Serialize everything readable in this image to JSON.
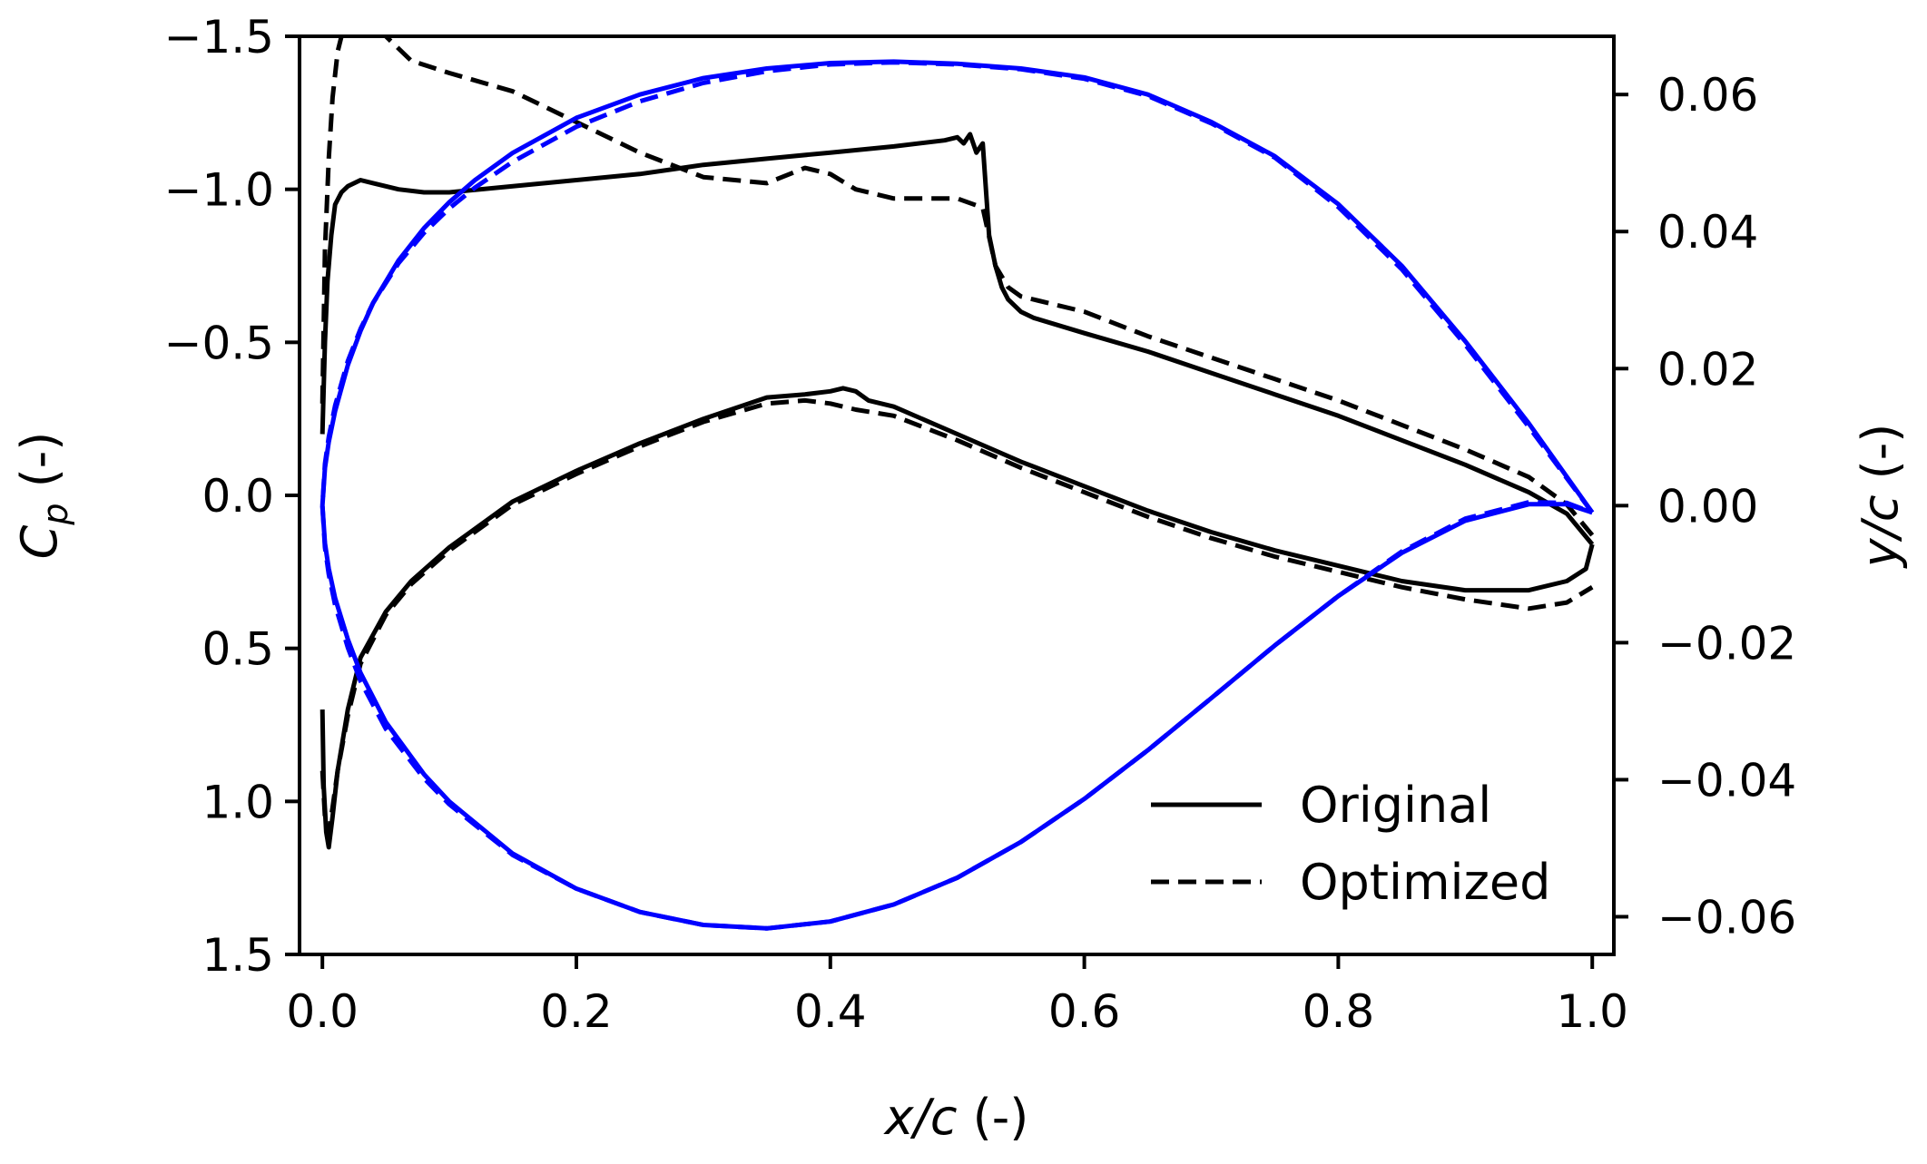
{
  "chart_data": {
    "type": "line",
    "x_axis": {
      "label_var": "x/c",
      "label_unit": " (-)",
      "ticks": [
        "0.0",
        "0.2",
        "0.4",
        "0.6",
        "0.8",
        "1.0"
      ],
      "tick_values": [
        0.0,
        0.2,
        0.4,
        0.6,
        0.8,
        1.0
      ],
      "range": [
        -0.018,
        1.017
      ]
    },
    "y_left": {
      "label_var": "C",
      "label_sub": "p",
      "label_unit": " (-)",
      "ticks": [
        "−1.5",
        "−1.0",
        "−0.5",
        "0.0",
        "0.5",
        "1.0",
        "1.5"
      ],
      "tick_values": [
        -1.5,
        -1.0,
        -0.5,
        0.0,
        0.5,
        1.0,
        1.5
      ],
      "range": [
        -1.5,
        1.5
      ],
      "inverted": true
    },
    "y_right": {
      "label_var": "y/c",
      "label_unit": " (-)",
      "ticks": [
        "0.06",
        "0.04",
        "0.02",
        "0.00",
        "−0.02",
        "−0.04",
        "−0.06"
      ],
      "tick_values": [
        0.06,
        0.04,
        0.02,
        0.0,
        -0.02,
        -0.04,
        -0.06
      ],
      "range": [
        -0.0655,
        0.0685
      ]
    },
    "legend": {
      "placement": "lower-right",
      "entries": [
        {
          "label": "Original",
          "style": "solid"
        },
        {
          "label": "Optimized",
          "style": "dashed"
        }
      ]
    },
    "colors": {
      "pressure": "#000000",
      "geometry": "#0000ff"
    },
    "series": [
      {
        "name": "Original",
        "kind": "cp",
        "style": "solid",
        "color": "#000000",
        "x": [
          0.0,
          0.002,
          0.004,
          0.007,
          0.01,
          0.015,
          0.02,
          0.03,
          0.04,
          0.06,
          0.08,
          0.1,
          0.15,
          0.2,
          0.25,
          0.3,
          0.35,
          0.4,
          0.45,
          0.49,
          0.5,
          0.505,
          0.51,
          0.515,
          0.52,
          0.525,
          0.53,
          0.535,
          0.54,
          0.55,
          0.56,
          0.6,
          0.65,
          0.7,
          0.75,
          0.8,
          0.85,
          0.9,
          0.95,
          0.98,
          1.0
        ],
        "y": [
          -0.2,
          -0.5,
          -0.7,
          -0.85,
          -0.95,
          -0.99,
          -1.01,
          -1.03,
          -1.02,
          -1.0,
          -0.99,
          -0.99,
          -1.01,
          -1.03,
          -1.05,
          -1.08,
          -1.1,
          -1.12,
          -1.14,
          -1.16,
          -1.17,
          -1.15,
          -1.18,
          -1.12,
          -1.15,
          -0.85,
          -0.75,
          -0.68,
          -0.64,
          -0.6,
          -0.58,
          -0.53,
          -0.47,
          -0.4,
          -0.33,
          -0.26,
          -0.18,
          -0.1,
          -0.01,
          0.06,
          0.16
        ]
      },
      {
        "name": "Original",
        "kind": "cp",
        "style": "solid",
        "color": "#000000",
        "x": [
          0.0,
          0.001,
          0.003,
          0.005,
          0.008,
          0.012,
          0.02,
          0.03,
          0.05,
          0.07,
          0.1,
          0.15,
          0.2,
          0.25,
          0.3,
          0.35,
          0.38,
          0.4,
          0.41,
          0.42,
          0.43,
          0.45,
          0.5,
          0.55,
          0.6,
          0.65,
          0.7,
          0.75,
          0.8,
          0.85,
          0.9,
          0.95,
          0.98,
          0.995,
          1.0
        ],
        "y": [
          0.7,
          0.95,
          1.1,
          1.15,
          1.05,
          0.9,
          0.7,
          0.53,
          0.38,
          0.28,
          0.17,
          0.02,
          -0.08,
          -0.17,
          -0.25,
          -0.32,
          -0.33,
          -0.34,
          -0.35,
          -0.34,
          -0.31,
          -0.29,
          -0.2,
          -0.11,
          -0.03,
          0.05,
          0.12,
          0.18,
          0.23,
          0.28,
          0.31,
          0.31,
          0.28,
          0.24,
          0.16
        ]
      },
      {
        "name": "Optimized",
        "kind": "cp",
        "style": "dashed",
        "color": "#000000",
        "x": [
          0.0,
          0.002,
          0.005,
          0.008,
          0.012,
          0.018,
          0.025,
          0.035,
          0.05,
          0.07,
          0.1,
          0.15,
          0.2,
          0.25,
          0.3,
          0.35,
          0.38,
          0.4,
          0.42,
          0.45,
          0.5,
          0.52,
          0.53,
          0.54,
          0.55,
          0.6,
          0.65,
          0.7,
          0.75,
          0.8,
          0.85,
          0.9,
          0.95,
          0.98,
          1.0
        ],
        "y": [
          -0.3,
          -0.8,
          -1.1,
          -1.3,
          -1.45,
          -1.55,
          -1.6,
          -1.58,
          -1.5,
          -1.42,
          -1.38,
          -1.32,
          -1.22,
          -1.12,
          -1.04,
          -1.02,
          -1.07,
          -1.05,
          -1.0,
          -0.97,
          -0.97,
          -0.94,
          -0.75,
          -0.68,
          -0.65,
          -0.6,
          -0.52,
          -0.45,
          -0.38,
          -0.31,
          -0.23,
          -0.15,
          -0.06,
          0.03,
          0.13
        ]
      },
      {
        "name": "Optimized",
        "kind": "cp",
        "style": "dashed",
        "color": "#000000",
        "x": [
          0.0,
          0.002,
          0.005,
          0.008,
          0.012,
          0.02,
          0.03,
          0.05,
          0.07,
          0.1,
          0.15,
          0.2,
          0.25,
          0.3,
          0.35,
          0.38,
          0.4,
          0.42,
          0.45,
          0.5,
          0.55,
          0.6,
          0.65,
          0.7,
          0.75,
          0.8,
          0.85,
          0.9,
          0.95,
          0.98,
          1.0
        ],
        "y": [
          0.9,
          1.05,
          1.1,
          1.02,
          0.9,
          0.72,
          0.55,
          0.39,
          0.29,
          0.18,
          0.03,
          -0.07,
          -0.16,
          -0.24,
          -0.3,
          -0.31,
          -0.3,
          -0.28,
          -0.26,
          -0.18,
          -0.09,
          -0.01,
          0.07,
          0.14,
          0.2,
          0.25,
          0.3,
          0.34,
          0.37,
          0.35,
          0.3
        ]
      },
      {
        "name": "Original",
        "kind": "geometry",
        "style": "solid",
        "color": "#0000ff",
        "x": [
          1.0,
          0.95,
          0.9,
          0.85,
          0.8,
          0.75,
          0.7,
          0.65,
          0.6,
          0.55,
          0.5,
          0.45,
          0.4,
          0.35,
          0.3,
          0.25,
          0.2,
          0.15,
          0.12,
          0.1,
          0.08,
          0.06,
          0.04,
          0.03,
          0.02,
          0.01,
          0.005,
          0.002,
          0.0,
          0.002,
          0.005,
          0.01,
          0.02,
          0.03,
          0.05,
          0.08,
          0.1,
          0.15,
          0.2,
          0.25,
          0.3,
          0.35,
          0.4,
          0.45,
          0.5,
          0.55,
          0.6,
          0.65,
          0.7,
          0.75,
          0.8,
          0.85,
          0.9,
          0.95,
          0.98,
          1.0
        ],
        "y": [
          -0.001,
          0.012,
          0.024,
          0.035,
          0.044,
          0.051,
          0.056,
          0.06,
          0.0625,
          0.0638,
          0.0645,
          0.0648,
          0.0646,
          0.0638,
          0.0624,
          0.06,
          0.0566,
          0.0515,
          0.0475,
          0.0443,
          0.0405,
          0.0358,
          0.0296,
          0.0255,
          0.0205,
          0.0138,
          0.0093,
          0.0055,
          0.0,
          -0.0055,
          -0.0092,
          -0.0135,
          -0.0195,
          -0.0244,
          -0.0316,
          -0.0392,
          -0.0432,
          -0.0508,
          -0.0559,
          -0.0593,
          -0.0612,
          -0.0617,
          -0.0607,
          -0.0582,
          -0.0543,
          -0.0491,
          -0.0428,
          -0.0357,
          -0.0281,
          -0.0204,
          -0.0132,
          -0.0069,
          -0.0022,
          0.0002,
          0.0002,
          -0.001
        ]
      },
      {
        "name": "Optimized",
        "kind": "geometry",
        "style": "dashed",
        "color": "#0000ff",
        "x": [
          1.0,
          0.95,
          0.9,
          0.85,
          0.8,
          0.75,
          0.7,
          0.65,
          0.6,
          0.55,
          0.5,
          0.45,
          0.4,
          0.35,
          0.3,
          0.25,
          0.2,
          0.15,
          0.12,
          0.1,
          0.08,
          0.06,
          0.04,
          0.03,
          0.02,
          0.01,
          0.005,
          0.002,
          0.0,
          0.002,
          0.005,
          0.01,
          0.02,
          0.03,
          0.05,
          0.08,
          0.1,
          0.15,
          0.2,
          0.25,
          0.3,
          0.35,
          0.4,
          0.45,
          0.5,
          0.55,
          0.6,
          0.65,
          0.7,
          0.75,
          0.8,
          0.85,
          0.9,
          0.95,
          0.98,
          1.0
        ],
        "y": [
          -0.001,
          0.0115,
          0.0235,
          0.0345,
          0.0436,
          0.0508,
          0.0558,
          0.0598,
          0.0623,
          0.0637,
          0.0644,
          0.0647,
          0.0644,
          0.0634,
          0.0617,
          0.059,
          0.0553,
          0.0502,
          0.0464,
          0.0434,
          0.0398,
          0.0354,
          0.0296,
          0.0258,
          0.0211,
          0.0146,
          0.01,
          0.0061,
          0.0,
          -0.0061,
          -0.01,
          -0.0145,
          -0.0207,
          -0.0256,
          -0.0326,
          -0.0398,
          -0.0436,
          -0.051,
          -0.0559,
          -0.0593,
          -0.0612,
          -0.0617,
          -0.0607,
          -0.0582,
          -0.0543,
          -0.0491,
          -0.0428,
          -0.0357,
          -0.0281,
          -0.0204,
          -0.0132,
          -0.0067,
          -0.0019,
          0.0005,
          0.0004,
          -0.001
        ]
      }
    ]
  }
}
